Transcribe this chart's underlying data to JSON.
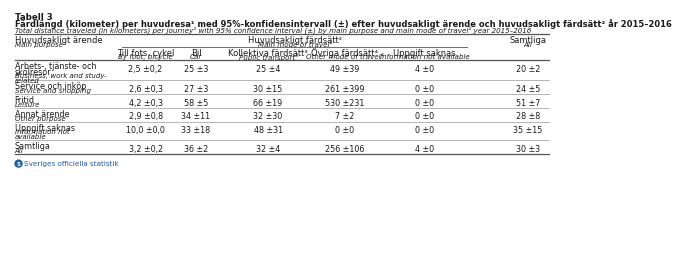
{
  "title_bold": "Tabell 3",
  "title_main": "Färdlängd (kilometer) per huvudresa¹ med 95%-konfidensintervall (±) efter huvudsakligt ärende och huvudsakligt färdsätt² år 2015–2016",
  "title_sub": "Total distance traveled (in kilometers) per journey¹ with 95% confidence interval (±) by main purpose and main mode of travel² year 2015–2016",
  "col_header_left_sv": "Huvudsakligt ärende",
  "col_header_left_en": "Main purpose",
  "col_header_mid_sv": "Huvudsakligt färdsätt²",
  "col_header_mid_en": "Main mode of travel²",
  "col_header_right_sv": "Samtliga",
  "col_header_right_en": "All",
  "sub_headers_sv": [
    "Till fots, cykel",
    "Bil",
    "Kollektiva färdsätt³",
    "Övriga färdsätt⁴",
    "Uppgift saknas"
  ],
  "sub_headers_en": [
    "By foot, bicycle",
    "Car",
    "Public transport³",
    "Other mode of travel⁴",
    "Information not available"
  ],
  "rows": [
    {
      "label_sv": "Arbets-, tjänste- och\nskolresor",
      "label_en": "Business, work and study-\nrelated",
      "values": [
        "2,5 ±0,2",
        "25 ±3",
        "25 ±4",
        "49 ±39",
        "4 ±0",
        "20 ±2"
      ]
    },
    {
      "label_sv": "Service och inköp",
      "label_en": "Service and shopping",
      "values": [
        "2,6 ±0,3",
        "27 ±3",
        "30 ±15",
        "261 ±399",
        "0 ±0",
        "24 ±5"
      ]
    },
    {
      "label_sv": "Fritid",
      "label_en": "Leisure",
      "values": [
        "4,2 ±0,3",
        "58 ±5",
        "66 ±19",
        "530 ±231",
        "0 ±0",
        "51 ±7"
      ]
    },
    {
      "label_sv": "Annat ärende",
      "label_en": "Other purpose",
      "values": [
        "2,9 ±0,8",
        "34 ±11",
        "32 ±30",
        "7 ±2",
        "0 ±0",
        "28 ±8"
      ]
    },
    {
      "label_sv": "Uppgift saknas",
      "label_en": "Information not\navailable",
      "values": [
        "10,0 ±0,0",
        "33 ±18",
        "48 ±31",
        "0 ±0",
        "0 ±0",
        "35 ±15"
      ]
    },
    {
      "label_sv": "Samtliga",
      "label_en": "All",
      "values": [
        "3,2 ±0,2",
        "36 ±2",
        "32 ±4",
        "256 ±106",
        "4 ±0",
        "30 ±3"
      ]
    }
  ],
  "bg_color": "#ffffff",
  "text_color": "#1a1a1a",
  "line_color": "#555555",
  "thin_line_color": "#999999",
  "logo_text": "Sveriges officiella statistik",
  "logo_color": "#1a5fa8"
}
